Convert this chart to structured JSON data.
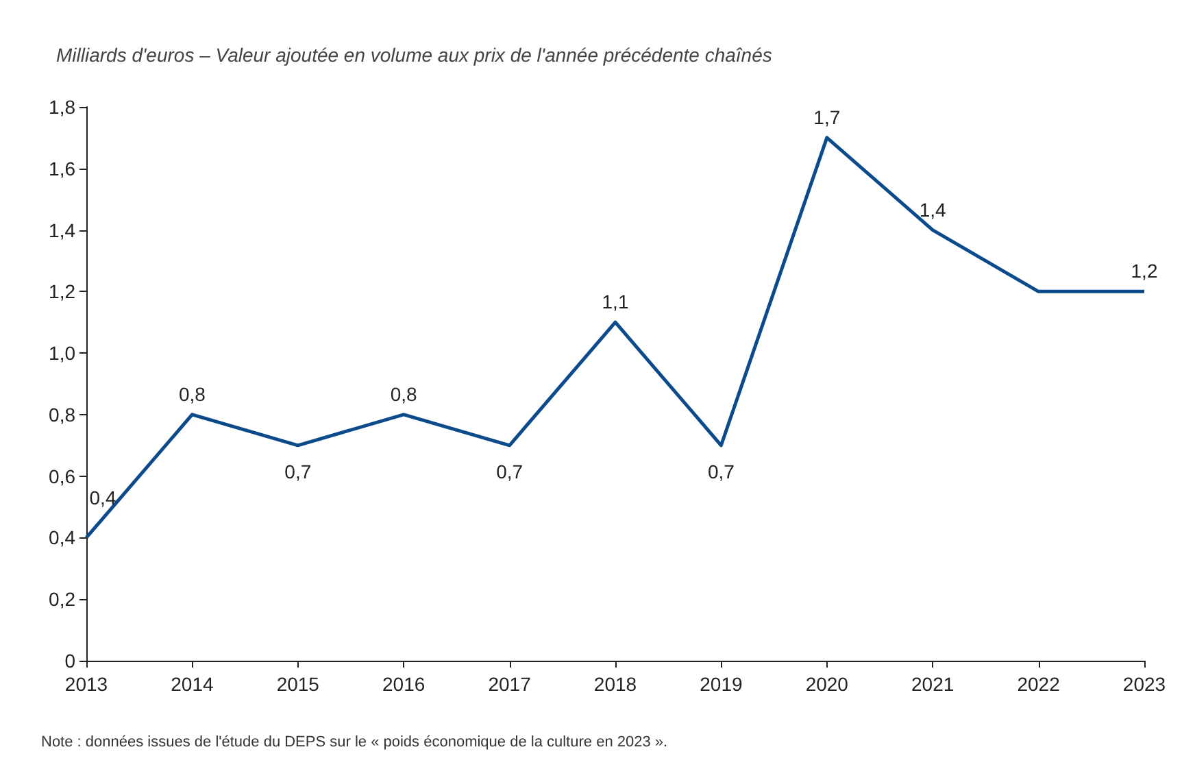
{
  "chart_data": {
    "type": "line",
    "title": "Milliards d'euros – Valeur ajoutée en volume aux prix de l'année précédente chaînés",
    "categories": [
      "2013",
      "2014",
      "2015",
      "2016",
      "2017",
      "2018",
      "2019",
      "2020",
      "2021",
      "2022",
      "2023"
    ],
    "series": [
      {
        "color": "#0b4a8b",
        "values": [
          0.4,
          0.8,
          0.7,
          0.8,
          0.7,
          1.1,
          0.7,
          1.7,
          1.4,
          1.2,
          1.2
        ],
        "value_labels": [
          "0,4",
          "0,8",
          "0,7",
          "0,8",
          "0,7",
          "1,1",
          "0,7",
          "1,7",
          "1,4",
          null,
          "1,2"
        ]
      }
    ],
    "ylim": [
      0,
      1.8
    ],
    "yticks": [
      0,
      {
        "value": 0.2,
        "label": "0,2"
      },
      {
        "value": 0.4,
        "label": "0,4"
      },
      {
        "value": 0.6,
        "label": "0,6"
      },
      {
        "value": 0.8,
        "label": "0,8"
      },
      {
        "value": 1.0,
        "label": "1,0"
      },
      {
        "value": 1.2,
        "label": "1,2"
      },
      {
        "value": 1.4,
        "label": "1,4"
      },
      {
        "value": 1.6,
        "label": "1,6"
      },
      {
        "value": 1.8,
        "label": "1,8"
      }
    ],
    "grid": false,
    "marker": "none",
    "line_style": "solid",
    "annotations": [
      "Note : données issues de l'étude du DEPS sur le « poids économique de la culture en 2023 »."
    ]
  }
}
